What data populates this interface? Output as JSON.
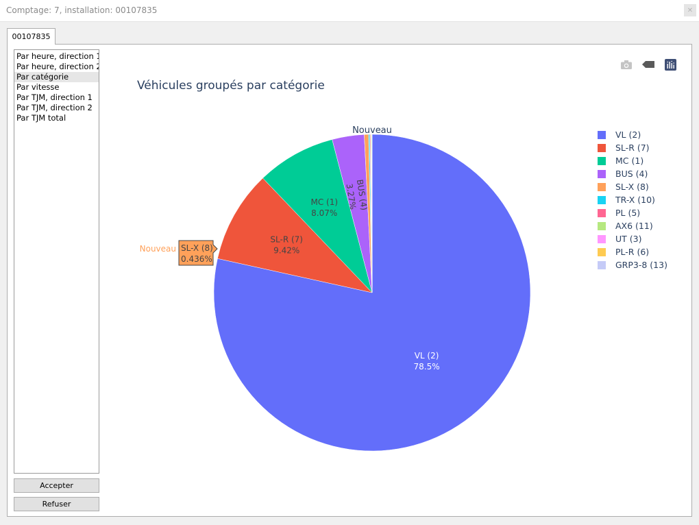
{
  "window": {
    "title": "Comptage: 7, installation: 00107835"
  },
  "tabs": [
    {
      "label": "00107835"
    }
  ],
  "sidebar": {
    "items": [
      {
        "label": "Par heure, direction 1"
      },
      {
        "label": "Par heure, direction 2"
      },
      {
        "label": "Par catégorie"
      },
      {
        "label": "Par vitesse"
      },
      {
        "label": "Par TJM, direction 1"
      },
      {
        "label": "Par TJM, direction 2"
      },
      {
        "label": "Par TJM total"
      }
    ],
    "selected_index": 2
  },
  "buttons": {
    "accept": "Accepter",
    "refuse": "Refuser"
  },
  "modebar": {
    "icons": [
      "camera-icon",
      "tag-icon",
      "plotly-logo-icon"
    ]
  },
  "colors": {
    "title_text": "#2a3f5f",
    "listbox_selected": "#e6e6e6"
  },
  "chart_data": {
    "type": "pie",
    "title": "Véhicules groupés par catégorie",
    "group_title": "Nouveau",
    "hover": {
      "label": "SL-X (8)",
      "percent": "0.436%",
      "group": "Nouveau"
    },
    "legend_position": "right",
    "slices": [
      {
        "label": "VL (2)",
        "value": 78.5,
        "percent_text": "78.5%",
        "color": "#636efa"
      },
      {
        "label": "SL-R (7)",
        "value": 9.42,
        "percent_text": "9.42%",
        "color": "#ef553b"
      },
      {
        "label": "MC (1)",
        "value": 8.07,
        "percent_text": "8.07%",
        "color": "#00cc96"
      },
      {
        "label": "BUS (4)",
        "value": 3.27,
        "percent_text": "3.27%",
        "color": "#ab63fa"
      },
      {
        "label": "SL-X (8)",
        "value": 0.436,
        "percent_text": "0.436%",
        "color": "#ffa15a"
      },
      {
        "label": "TR-X (10)",
        "value": 0.12,
        "percent_text": "",
        "color": "#19d3f3"
      },
      {
        "label": "PL (5)",
        "value": 0.08,
        "percent_text": "",
        "color": "#ff6692"
      },
      {
        "label": "AX6 (11)",
        "value": 0.07,
        "percent_text": "",
        "color": "#b6e880"
      },
      {
        "label": "UT (3)",
        "value": 0.04,
        "percent_text": "",
        "color": "#ff97ff"
      },
      {
        "label": "PL-R (6)",
        "value": 0.03,
        "percent_text": "",
        "color": "#fecb52"
      },
      {
        "label": "GRP3-8 (13)",
        "value": 0.02,
        "percent_text": "",
        "color": "#c5cbf7"
      }
    ]
  }
}
